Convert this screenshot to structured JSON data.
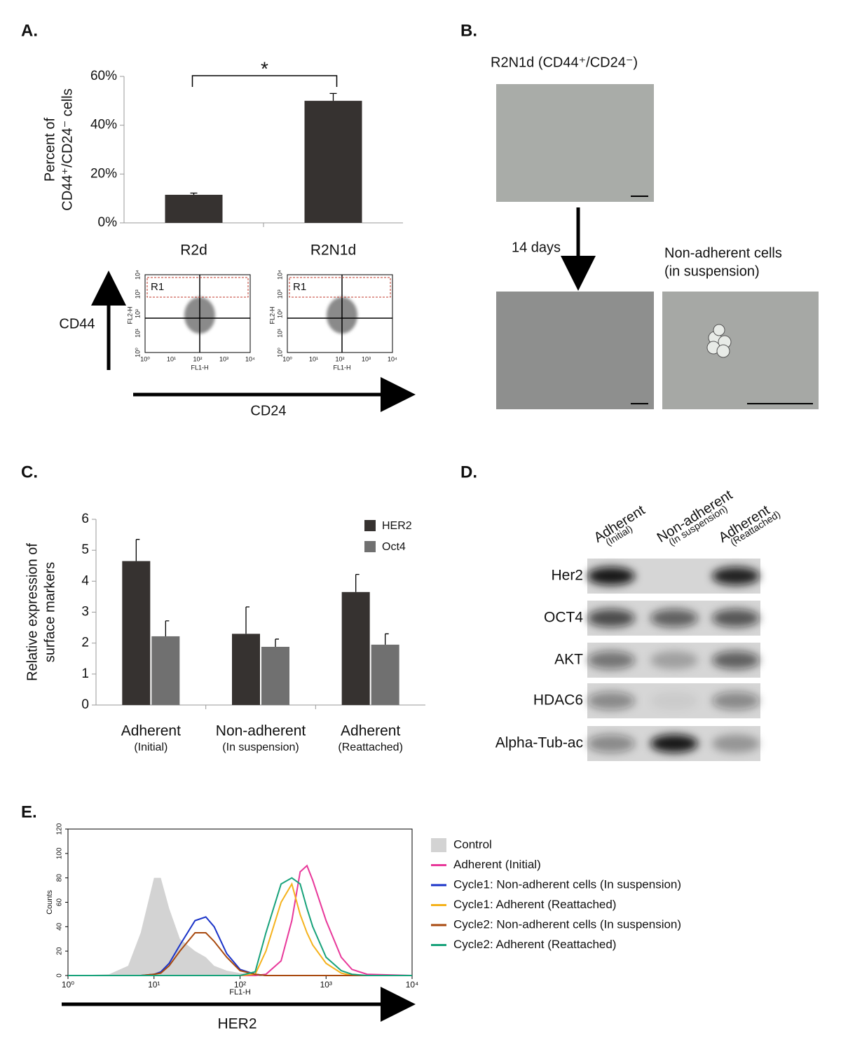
{
  "chart_data": [
    {
      "type": "bar",
      "panel": "A.",
      "y_label": [
        "Percent of",
        "CD44⁺/CD24⁻ cells"
      ],
      "categories": [
        "R2d",
        "R2N1d"
      ],
      "values": [
        11.5,
        50
      ],
      "errors": [
        0.7,
        3
      ],
      "color": "#363230",
      "ylim": [
        0,
        60
      ],
      "yticks": [
        {
          "value": 0,
          "label": "0%"
        },
        {
          "value": 20,
          "label": "20%"
        },
        {
          "value": 40,
          "label": "40%"
        },
        {
          "value": 60,
          "label": "60%"
        }
      ],
      "annotation": "*"
    },
    {
      "type": "grouped-bar",
      "panel": "C.",
      "y_label": [
        "Relative expression of",
        "surface markers"
      ],
      "categories": [
        "Adherent",
        "Non-adherent",
        "Adherent"
      ],
      "category_notes": [
        "(Initial)",
        "(In suspension)",
        "(Reattached)"
      ],
      "series": [
        {
          "name": "HER2",
          "color": "#363230",
          "values": [
            4.65,
            2.3,
            3.65
          ],
          "errors": [
            0.7,
            0.87,
            0.57
          ]
        },
        {
          "name": "Oct4",
          "color": "#707070",
          "values": [
            2.22,
            1.88,
            1.95
          ],
          "errors": [
            0.5,
            0.25,
            0.35
          ]
        }
      ],
      "ylim": [
        0,
        6
      ],
      "yticks": [
        0,
        1,
        2,
        3,
        4,
        5,
        6
      ]
    },
    {
      "type": "line",
      "panel": "E.",
      "log_x": true,
      "y_label": "Counts",
      "x_label": "FL1-H",
      "marker": "HER2",
      "x": [
        1,
        3,
        5,
        7,
        10,
        12,
        15,
        20,
        30,
        40,
        50,
        70,
        100,
        150,
        200,
        300,
        400,
        500,
        600,
        700,
        1000,
        1500,
        2000,
        3000,
        10000
      ],
      "series": [
        {
          "name": "Control",
          "color": "#d3d3d3",
          "fill": true,
          "values": [
            0,
            1,
            8,
            35,
            80,
            80,
            55,
            30,
            20,
            15,
            8,
            4,
            2,
            1,
            0,
            0,
            0,
            0,
            0,
            0,
            0,
            0,
            0,
            0,
            0
          ]
        },
        {
          "name": "Adherent (Initial)",
          "color": "#e8389a",
          "values": [
            0,
            0,
            0,
            0,
            0,
            0,
            0,
            0,
            0,
            0,
            0,
            0,
            0,
            0,
            1,
            12,
            45,
            85,
            90,
            78,
            45,
            15,
            5,
            1,
            0
          ]
        },
        {
          "name": "Cycle1: Non-adherent cells (In suspension)",
          "color": "#1a33c8",
          "values": [
            0,
            0,
            0,
            0,
            1,
            3,
            10,
            25,
            45,
            48,
            40,
            18,
            5,
            1,
            0,
            0,
            0,
            0,
            0,
            0,
            0,
            0,
            0,
            0,
            0
          ]
        },
        {
          "name": "Cycle1: Adherent (Reattached)",
          "color": "#f5b21c",
          "values": [
            0,
            0,
            0,
            0,
            0,
            0,
            0,
            0,
            0,
            0,
            0,
            0,
            0,
            1,
            20,
            60,
            75,
            50,
            35,
            25,
            10,
            2,
            0,
            0,
            0
          ]
        },
        {
          "name": "Cycle2: Non-adherent cells (In suspension)",
          "color": "#a8490e",
          "values": [
            0,
            0,
            0,
            0,
            1,
            2,
            8,
            20,
            35,
            35,
            28,
            15,
            4,
            1,
            0,
            0,
            0,
            0,
            0,
            0,
            0,
            0,
            0,
            0,
            0
          ]
        },
        {
          "name": "Cycle2: Adherent (Reattached)",
          "color": "#17a27a",
          "values": [
            0,
            0,
            0,
            0,
            0,
            0,
            0,
            0,
            0,
            0,
            0,
            0,
            0,
            3,
            35,
            75,
            80,
            75,
            55,
            40,
            15,
            4,
            1,
            0,
            0
          ]
        }
      ],
      "xlim": [
        1,
        10000
      ],
      "xticks": [
        {
          "value": 1,
          "label": "10⁰"
        },
        {
          "value": 10,
          "label": "10¹"
        },
        {
          "value": 100,
          "label": "10²"
        },
        {
          "value": 1000,
          "label": "10³"
        },
        {
          "value": 10000,
          "label": "10⁴"
        }
      ],
      "ylim": [
        0,
        120
      ],
      "yticks": [
        0,
        20,
        40,
        60,
        80,
        100,
        120
      ]
    }
  ],
  "flow": {
    "y_marker": "CD44",
    "x_marker": "CD24",
    "y_axis": "FL2-H",
    "x_axis": "FL1-H",
    "tick_labels": [
      "10⁰",
      "10¹",
      "10²",
      "10³",
      "10⁴"
    ],
    "gates": [
      "R1",
      "R1"
    ]
  },
  "panel_b": {
    "panel": "B.",
    "title": "R2N1d (CD44⁺/CD24⁻)",
    "arrow_label": "14 days",
    "suspension_label": [
      "Non-adherent cells",
      "(in suspension)"
    ]
  },
  "panel_d": {
    "panel": "D.",
    "columns": [
      {
        "name": "Adherent",
        "note": "(Initial)"
      },
      {
        "name": "Non-adherent",
        "note": "(In suspension)"
      },
      {
        "name": "Adherent",
        "note": "(Reattached)"
      }
    ],
    "rows": [
      "Her2",
      "OCT4",
      "AKT",
      "HDAC6",
      "Alpha-Tub-ac"
    ]
  }
}
